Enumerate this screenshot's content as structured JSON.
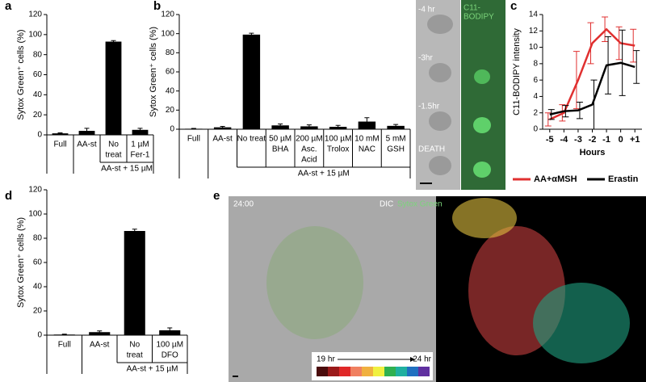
{
  "chart_data": [
    {
      "type": "bar",
      "panel": "a",
      "ylabel": "Sytox Green⁺ cells (%)",
      "categories": [
        [
          "Full"
        ],
        [
          "AA-st"
        ],
        [
          "No",
          "treat"
        ],
        [
          "1 µM",
          "Fer-1"
        ]
      ],
      "values": [
        1.5,
        4,
        93,
        5
      ],
      "errors": [
        0.5,
        2.5,
        1,
        1.5
      ],
      "color": "#000000",
      "group_label": "AA-st + 15 µM",
      "ylim": [
        0,
        120
      ],
      "yticks": [
        0,
        20,
        40,
        60,
        80,
        100,
        120
      ]
    },
    {
      "type": "bar",
      "panel": "b",
      "ylabel": "Sytox Green⁺ cells (%)",
      "categories": [
        [
          "Full"
        ],
        [
          "AA-st"
        ],
        [
          "No treat"
        ],
        [
          "50 µM",
          "BHA"
        ],
        [
          "200 µM",
          "Asc.",
          "Acid"
        ],
        [
          "100 µM",
          "Trolox"
        ],
        [
          "10 mM",
          "NAC"
        ],
        [
          "5 mM",
          "GSH"
        ]
      ],
      "values": [
        0.5,
        2,
        99,
        4,
        3,
        2.5,
        8,
        3.5
      ],
      "errors": [
        0.3,
        1,
        1.5,
        1.5,
        1.5,
        1.5,
        4,
        1.5
      ],
      "color": "#000000",
      "group_label": "AA-st + 15 µM",
      "ylim": [
        0,
        120
      ],
      "yticks": [
        0,
        20,
        40,
        60,
        80,
        100,
        120
      ]
    },
    {
      "type": "line",
      "panel": "c",
      "ylabel": "C11-BODIPY intensity",
      "xlabel": "Hours",
      "image_labels": [
        "-4 hr",
        "-3hr",
        "-1.5hr",
        "DEATH"
      ],
      "channel_label": [
        "C11-",
        "BODIPY"
      ],
      "x": [
        -5,
        -4,
        -3,
        -2,
        -1,
        0,
        1
      ],
      "series": [
        {
          "name": "AA+αMSH",
          "color": "#e03030",
          "values": [
            1.2,
            2,
            6,
            10.5,
            12.2,
            10.5,
            10.2
          ],
          "errors": [
            0.8,
            1,
            3.5,
            2.5,
            1.5,
            2,
            2
          ]
        },
        {
          "name": "Erastin",
          "color": "#000000",
          "values": [
            1.8,
            2.2,
            2.3,
            3,
            7.8,
            8.1,
            7.6
          ],
          "errors": [
            0.6,
            0.7,
            1,
            3,
            3.5,
            4,
            2
          ]
        }
      ],
      "xlim": [
        -5.5,
        1.5
      ],
      "xticks": [
        -5,
        -4,
        -3,
        -2,
        -1,
        0,
        {
          "value": 1,
          "label": "+1"
        }
      ],
      "ylim": [
        0,
        14
      ],
      "yticks": [
        0,
        2,
        4,
        6,
        8,
        10,
        12,
        14
      ],
      "legend": "bottom"
    },
    {
      "type": "bar",
      "panel": "d",
      "ylabel": "Sytox Green⁺ cells (%)",
      "categories": [
        [
          "Full"
        ],
        [
          "AA-st"
        ],
        [
          "No",
          "treat"
        ],
        [
          "100 µM",
          "DFO"
        ]
      ],
      "values": [
        0.5,
        2.5,
        86,
        4
      ],
      "errors": [
        0.3,
        1,
        1.5,
        2
      ],
      "color": "#000000",
      "group_label": "AA-st + 15 µM",
      "ylim": [
        0,
        120
      ],
      "yticks": [
        0,
        20,
        40,
        60,
        80,
        100,
        120
      ]
    },
    {
      "type": "image",
      "panel": "e",
      "time": "24:00",
      "channels": [
        "DIC",
        "Sytox Green"
      ],
      "scale_start": "19 hr",
      "scale_end": "24 hr"
    }
  ]
}
